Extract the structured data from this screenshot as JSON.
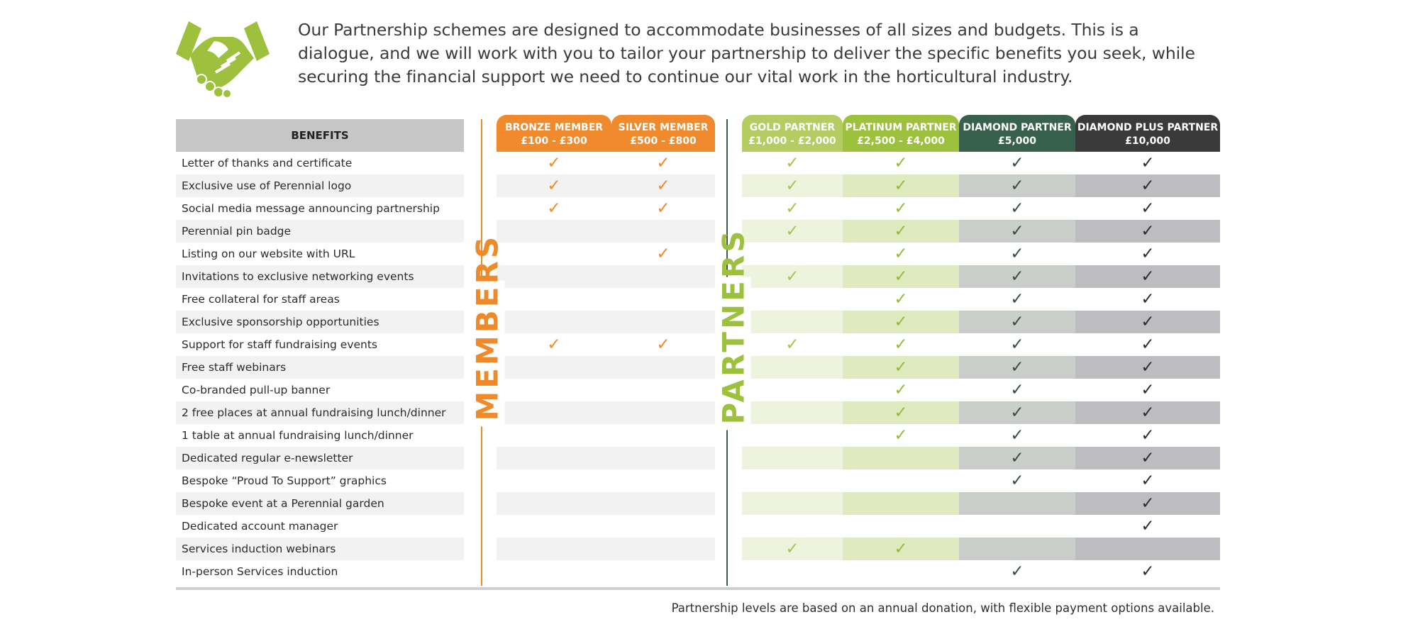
{
  "intro": {
    "text": "Our Partnership schemes are designed to accommodate businesses of all sizes and budgets. This is a dialogue, and we will work with you to tailor your partnership to deliver the specific benefits you seek, while securing the financial support we need to continue our vital work in the horticultural industry."
  },
  "table": {
    "benefits_header": "BENEFITS",
    "members_label": "MEMBERS",
    "partners_label": "PARTNERS",
    "check_symbol": "✓",
    "benefits": [
      "Letter of thanks and certificate",
      "Exclusive use of Perennial logo",
      "Social media message announcing partnership",
      "Perennial pin badge",
      "Listing on our website with URL",
      "Invitations to exclusive networking events",
      "Free collateral for staff areas",
      "Exclusive sponsorship opportunities",
      "Support for staff fundraising events",
      "Free staff webinars",
      "Co-branded pull-up banner",
      "2 free places at annual fundraising lunch/dinner",
      "1 table at annual fundraising lunch/dinner",
      "Dedicated regular e-newsletter",
      "Bespoke “Proud To Support” graphics",
      "Bespoke event at a Perennial garden",
      "Dedicated account manager",
      "Services induction webinars",
      "In-person Services induction"
    ],
    "tiers": [
      {
        "name": "BRONZE MEMBER",
        "price": "£100 - £300",
        "header_color": "#f08a2c",
        "check_color": "#ee8a2a",
        "band_color": "#f2f2f2",
        "checks": [
          1,
          1,
          1,
          0,
          0,
          0,
          0,
          0,
          1,
          0,
          0,
          0,
          0,
          0,
          0,
          0,
          0,
          0,
          0
        ]
      },
      {
        "name": "SILVER MEMBER",
        "price": "£500 - £800",
        "header_color": "#f08a2c",
        "check_color": "#ee8a2a",
        "band_color": "#f2f2f2",
        "checks": [
          1,
          1,
          1,
          0,
          1,
          0,
          0,
          0,
          1,
          0,
          0,
          0,
          0,
          0,
          0,
          0,
          0,
          0,
          0
        ]
      },
      {
        "name": "GOLD PARTNER",
        "price": "£1,000 - £2,000",
        "header_color": "#b5cc62",
        "check_color": "#a7c254",
        "band_color": "#eef3de",
        "checks": [
          1,
          1,
          1,
          1,
          0,
          1,
          0,
          0,
          1,
          0,
          0,
          0,
          0,
          0,
          0,
          0,
          0,
          1,
          0
        ]
      },
      {
        "name": "PLATINUM PARTNER",
        "price": "£2,500 - £4,000",
        "header_color": "#9dc03d",
        "check_color": "#96bb35",
        "band_color": "#dfeac0",
        "checks": [
          1,
          1,
          1,
          1,
          1,
          1,
          1,
          1,
          1,
          1,
          1,
          1,
          1,
          0,
          0,
          0,
          0,
          1,
          0
        ]
      },
      {
        "name": "DIAMOND PARTNER",
        "price": "£5,000",
        "header_color": "#37614c",
        "check_color": "#2f4f3e",
        "band_color": "#c9cfc8",
        "checks": [
          1,
          1,
          1,
          1,
          1,
          1,
          1,
          1,
          1,
          1,
          1,
          1,
          1,
          1,
          1,
          0,
          0,
          0,
          1
        ]
      },
      {
        "name": "DIAMOND PLUS PARTNER",
        "price": "£10,000",
        "header_color": "#3a3a3a",
        "check_color": "#2c2c2c",
        "band_color": "#bdbdc1",
        "checks": [
          1,
          1,
          1,
          1,
          1,
          1,
          1,
          1,
          1,
          1,
          1,
          1,
          1,
          1,
          1,
          1,
          1,
          0,
          1
        ]
      }
    ]
  },
  "footnote": "Partnership levels are based on an annual donation, with flexible payment options available.",
  "colors": {
    "member_accent": "#ee8a2a",
    "partner_accent": "#9dc03d",
    "divider_partner": "#3d5a4a",
    "logo_green": "#9dc03d"
  }
}
